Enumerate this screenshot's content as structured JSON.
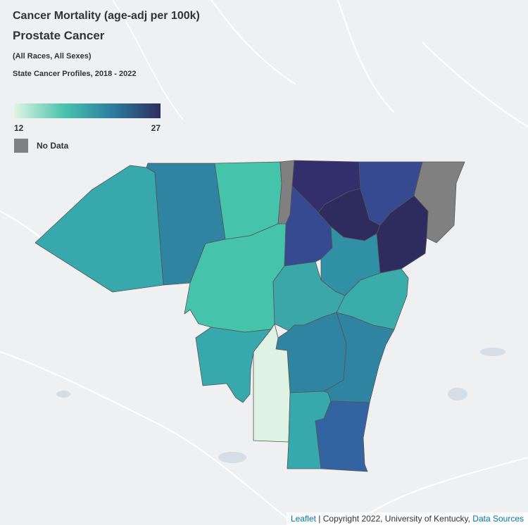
{
  "title": "Cancer Mortality (age-adj per 100k)",
  "cancer_site": "Prostate Cancer",
  "subgroup": "(All Races, All Sexes)",
  "source": "State Cancer Profiles, 2018 - 2022",
  "legend": {
    "min": "12",
    "max": "27",
    "no_data_label": "No Data",
    "gradient_colors": [
      "#e0f5e6",
      "#4cc4ad",
      "#2b7fa0",
      "#2e2c5e"
    ],
    "no_data_color": "#808080"
  },
  "attribution": {
    "leaflet": "Leaflet",
    "copyright": " | Copyright 2022, University of Kentucky, ",
    "data_sources": "Data Sources"
  },
  "counties": [
    {
      "name": "region-1",
      "value": 21
    },
    {
      "name": "region-2",
      "value": 23
    },
    {
      "name": "region-3",
      "value": 19
    },
    {
      "name": "region-4",
      "value": "No Data"
    },
    {
      "name": "region-5",
      "value": 27
    },
    {
      "name": "region-6",
      "value": 25
    },
    {
      "name": "region-7",
      "value": "No Data"
    },
    {
      "name": "region-8",
      "value": 25
    },
    {
      "name": "region-9",
      "value": 27
    },
    {
      "name": "region-10",
      "value": 27
    },
    {
      "name": "region-11",
      "value": 19
    },
    {
      "name": "region-12",
      "value": 22
    },
    {
      "name": "region-13",
      "value": 20
    },
    {
      "name": "region-14",
      "value": 21
    },
    {
      "name": "region-15",
      "value": 23
    },
    {
      "name": "region-16",
      "value": 23
    },
    {
      "name": "region-17",
      "value": 13
    },
    {
      "name": "region-18",
      "value": 21
    },
    {
      "name": "region-19",
      "value": 24
    }
  ]
}
